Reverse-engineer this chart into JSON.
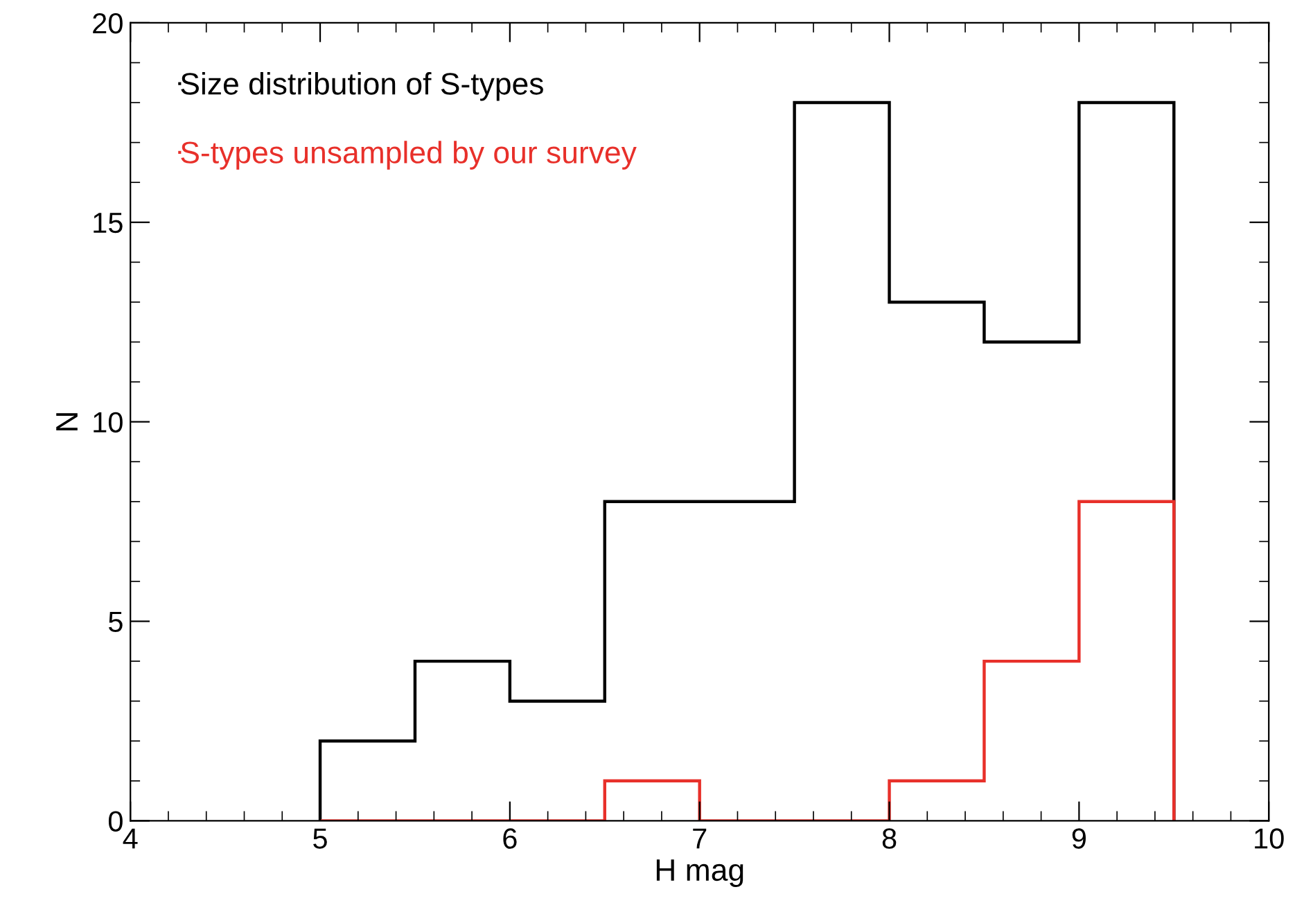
{
  "chart_data": {
    "type": "histogram",
    "xlabel": "H mag",
    "ylabel": "N",
    "bins": [
      5,
      5.5,
      6,
      6.5,
      7,
      7.5,
      8,
      8.5,
      9,
      9.5
    ],
    "series": [
      {
        "name": "Size distribution of S-types",
        "color": "#000000",
        "values": [
          2,
          4,
          3,
          8,
          8,
          18,
          13,
          12,
          18
        ]
      },
      {
        "name": "S-types unsampled by our survey",
        "color": "#e8302a",
        "values": [
          0,
          0,
          0,
          1,
          0,
          0,
          1,
          4,
          8
        ]
      }
    ],
    "xlim": [
      4,
      10
    ],
    "xticks": [
      4,
      5,
      6,
      7,
      8,
      9,
      10
    ],
    "ylim": [
      0,
      20
    ],
    "yticks": [
      0,
      5,
      10,
      15,
      20
    ],
    "grid": false,
    "legend": "top left"
  }
}
